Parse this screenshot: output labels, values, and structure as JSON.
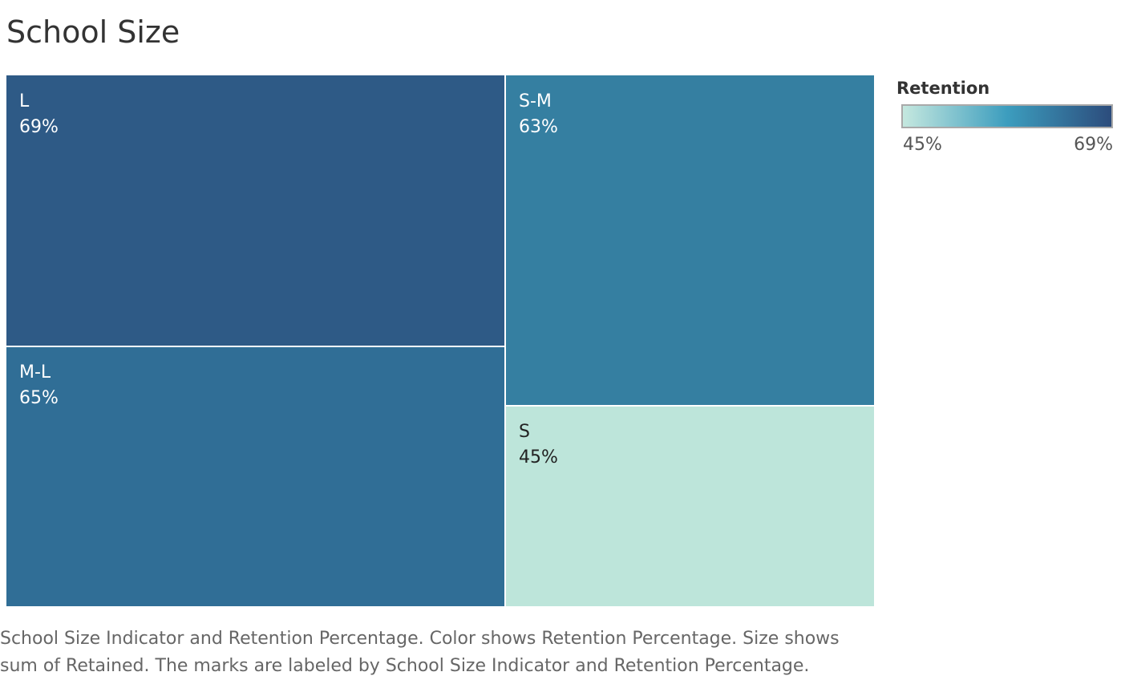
{
  "title": "School Size",
  "chart_data": {
    "type": "treemap",
    "title": "School Size",
    "color_metric": "Retention",
    "size_metric": "sum of Retained",
    "tiles": [
      {
        "label": "L",
        "value_label": "69%",
        "retention": 69,
        "color": "#2e5a86",
        "text_color": "#ffffff"
      },
      {
        "label": "M-L",
        "value_label": "65%",
        "retention": 65,
        "color": "#306e96",
        "text_color": "#ffffff"
      },
      {
        "label": "S-M",
        "value_label": "63%",
        "retention": 63,
        "color": "#357fa1",
        "text_color": "#ffffff"
      },
      {
        "label": "S",
        "value_label": "45%",
        "retention": 45,
        "color": "#bde5da",
        "text_color": "#222222"
      }
    ],
    "legend": {
      "title": "Retention",
      "min_label": "45%",
      "max_label": "69%",
      "gradient_colors": [
        "#c5e8df",
        "#3c9dbe",
        "#2c4c7c"
      ],
      "placement": "top-right"
    }
  },
  "caption": "School Size Indicator and Retention Percentage.  Color shows Retention Percentage.  Size shows sum of Retained.  The marks are labeled by School Size Indicator and Retention Percentage."
}
